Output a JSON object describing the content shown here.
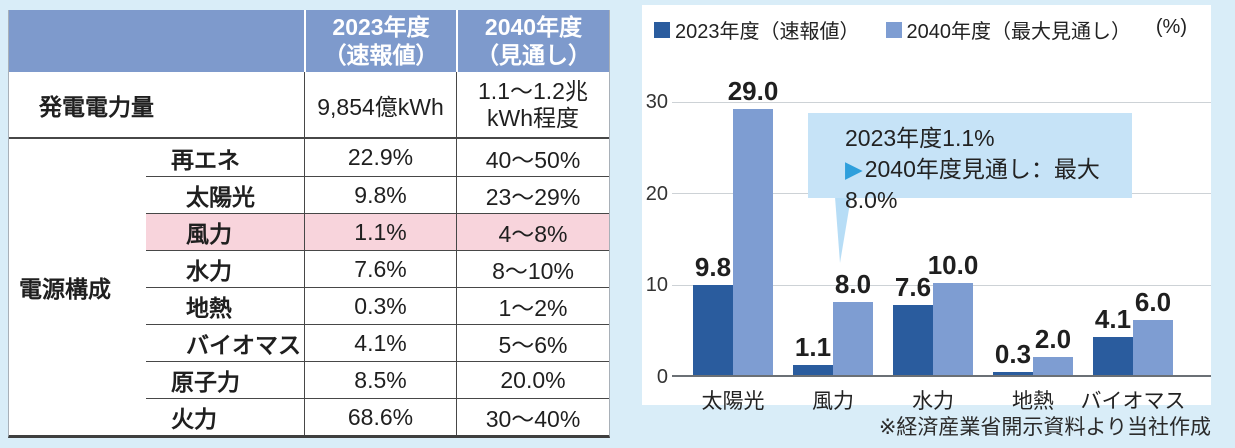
{
  "table": {
    "header": {
      "col_2023": "2023年度\n（速報値）",
      "col_2040": "2040年度\n（見通し）",
      "header_bg": "#7E9ACC"
    },
    "generation_row": {
      "label": "発電電力量",
      "v2023": "9,854億kWh",
      "v2040": "1.1〜1.2兆\nkWh程度"
    },
    "composition_label": "電源構成",
    "rows": [
      {
        "label": "再エネ",
        "v2023": "22.9%",
        "v2040": "40〜50%",
        "highlight": false
      },
      {
        "label": "太陽光",
        "v2023": "9.8%",
        "v2040": "23〜29%",
        "highlight": false
      },
      {
        "label": "風力",
        "v2023": "1.1%",
        "v2040": "4〜8%",
        "highlight": true
      },
      {
        "label": "水力",
        "v2023": "7.6%",
        "v2040": "8〜10%",
        "highlight": false
      },
      {
        "label": "地熱",
        "v2023": "0.3%",
        "v2040": "1〜2%",
        "highlight": false
      },
      {
        "label": "バイオマス",
        "v2023": "4.1%",
        "v2040": "5〜6%",
        "highlight": false
      },
      {
        "label": "原子力",
        "v2023": "8.5%",
        "v2040": "20.0%",
        "highlight": false
      },
      {
        "label": "火力",
        "v2023": "68.6%",
        "v2040": "30〜40%",
        "highlight": false
      }
    ],
    "highlight_color": "#F8D4DC"
  },
  "chart_data": {
    "type": "bar",
    "categories": [
      "太陽光",
      "風力",
      "水力",
      "地熱",
      "バイオマス"
    ],
    "series": [
      {
        "name": "2023年度（速報値）",
        "color": "#2A5C9E",
        "values": [
          9.8,
          1.1,
          7.6,
          0.3,
          4.1
        ]
      },
      {
        "name": "2040年度（最大見通し）",
        "color": "#7E9DD2",
        "values": [
          29.0,
          8.0,
          10.0,
          2.0,
          6.0
        ]
      }
    ],
    "unit_label": "(%)",
    "y_ticks": [
      0,
      10,
      20,
      30
    ],
    "ylim": [
      0,
      30
    ],
    "grid": true,
    "legend_position": "top-left"
  },
  "callout": {
    "line1": "2023年度1.1%",
    "line2": "2040年度見通し：最大8.0%",
    "arrow_glyph": "▶",
    "arrow_color": "#2E9FDC",
    "bg": "#C6E3F7"
  },
  "footnote": "※経済産業省開示資料より当社作成"
}
